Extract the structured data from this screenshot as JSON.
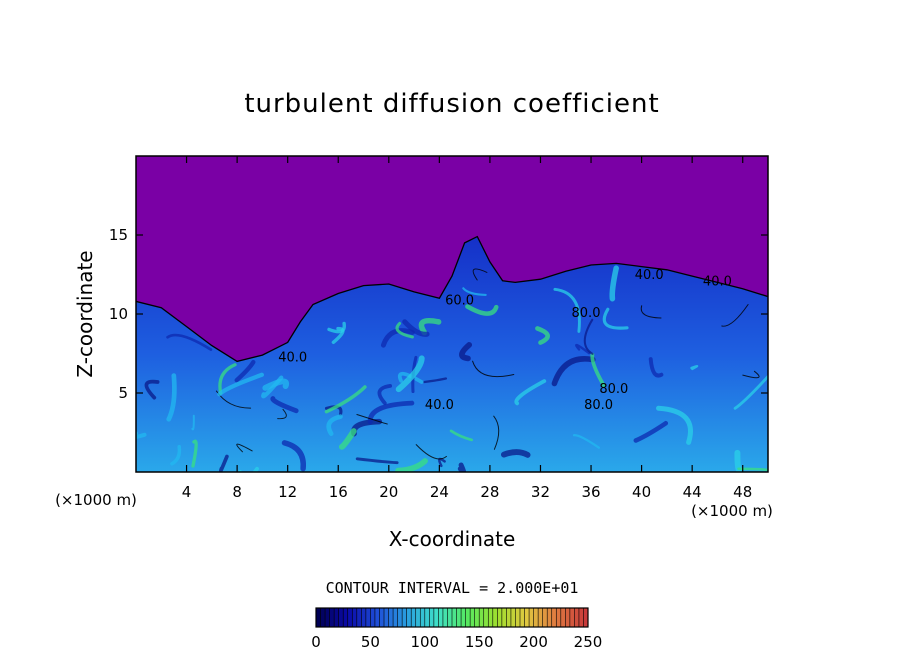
{
  "chart_data": {
    "type": "heatmap",
    "title": "turbulent diffusion coefficient",
    "xlabel": "X-coordinate",
    "ylabel": "Z-coordinate",
    "x_unit": "(×1000 m)",
    "z_unit": "(×1000 m)",
    "xlim": [
      0,
      50
    ],
    "ylim": [
      0,
      20
    ],
    "x_ticks": [
      4,
      8,
      12,
      16,
      20,
      24,
      28,
      32,
      36,
      40,
      44,
      48
    ],
    "y_ticks": [
      5,
      10,
      15
    ],
    "contour_interval_text": "CONTOUR INTERVAL = 2.000E+01",
    "contour_labels": [
      {
        "text": "40.0",
        "x": 12.4,
        "y": 7.0
      },
      {
        "text": "60.0",
        "x": 25.6,
        "y": 10.6
      },
      {
        "text": "40.0",
        "x": 24.0,
        "y": 4.0
      },
      {
        "text": "80.0",
        "x": 35.6,
        "y": 9.8
      },
      {
        "text": "40.0",
        "x": 40.6,
        "y": 12.2
      },
      {
        "text": "40.0",
        "x": 46.0,
        "y": 11.8
      },
      {
        "text": "80.0",
        "x": 37.8,
        "y": 5.0
      },
      {
        "text": "80.0",
        "x": 36.6,
        "y": 4.0
      }
    ],
    "cloud_top_profile": [
      [
        0,
        10.8
      ],
      [
        2,
        10.4
      ],
      [
        4,
        9.2
      ],
      [
        6,
        8.0
      ],
      [
        8,
        7.0
      ],
      [
        10,
        7.4
      ],
      [
        12,
        8.2
      ],
      [
        13,
        9.5
      ],
      [
        14,
        10.6
      ],
      [
        16,
        11.3
      ],
      [
        18,
        11.8
      ],
      [
        20,
        11.9
      ],
      [
        22,
        11.4
      ],
      [
        24,
        11.0
      ],
      [
        25,
        12.4
      ],
      [
        26,
        14.5
      ],
      [
        27,
        14.9
      ],
      [
        28,
        13.3
      ],
      [
        29,
        12.1
      ],
      [
        30,
        12.0
      ],
      [
        32,
        12.2
      ],
      [
        34,
        12.7
      ],
      [
        36,
        13.1
      ],
      [
        38,
        13.2
      ],
      [
        40,
        13.0
      ],
      [
        42,
        12.8
      ],
      [
        44,
        12.4
      ],
      [
        46,
        12.0
      ],
      [
        48,
        11.6
      ],
      [
        50,
        11.1
      ]
    ],
    "colorbar": {
      "min": 0,
      "max": 250,
      "ticks": [
        0,
        50,
        100,
        150,
        200,
        250
      ],
      "colors": [
        "#000055",
        "#0a0aa8",
        "#1f4fd8",
        "#2aa0e0",
        "#3fe0c8",
        "#55e860",
        "#9ee030",
        "#e0c840",
        "#e07a40",
        "#c83a3a"
      ]
    },
    "background_color": "#7a00a5",
    "grid": false
  }
}
